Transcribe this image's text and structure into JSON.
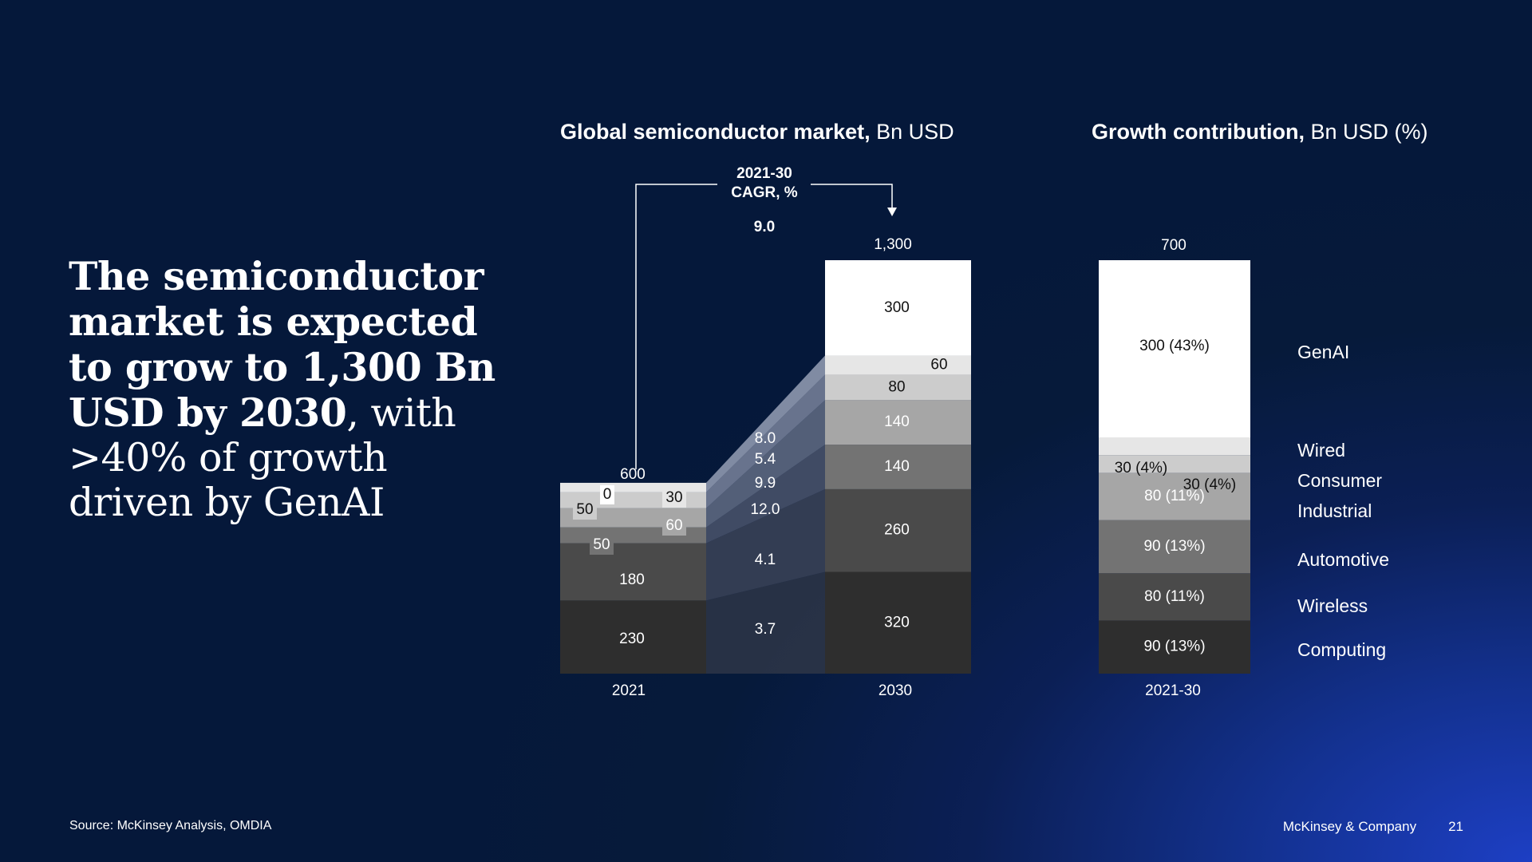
{
  "headline": {
    "bold": "The semiconductor market is expected to grow to 1,300 Bn USD by 2030",
    "regular": ", with >40% of growth driven by GenAI"
  },
  "market_title": {
    "bold": "Global semiconductor market,",
    "regular": " Bn USD"
  },
  "contrib_title": {
    "bold": "Growth contribution,",
    "regular": " Bn USD (%)"
  },
  "footer": {
    "source": "Source: McKinsey Analysis, OMDIA",
    "company": "McKinsey & Company",
    "page": "21"
  },
  "chart_data": [
    {
      "type": "bar",
      "stacked": true,
      "title": "Global semiconductor market, Bn USD",
      "categories": [
        "2021",
        "2030"
      ],
      "totals": [
        "600",
        "1,300"
      ],
      "cagr_header": [
        "2021-30",
        "CAGR, %"
      ],
      "cagr_total": "9.0",
      "series": [
        {
          "name": "Computing",
          "values": [
            230,
            320
          ],
          "labels": [
            "230",
            "320"
          ],
          "cagr": "3.7"
        },
        {
          "name": "Wireless",
          "values": [
            180,
            260
          ],
          "labels": [
            "180",
            "260"
          ],
          "cagr": "4.1"
        },
        {
          "name": "Automotive",
          "values": [
            50,
            140
          ],
          "labels": [
            "50",
            "140"
          ],
          "cagr": "12.0"
        },
        {
          "name": "Industrial",
          "values": [
            60,
            140
          ],
          "labels": [
            "60",
            "140"
          ],
          "cagr": "9.9"
        },
        {
          "name": "Consumer",
          "values": [
            50,
            80
          ],
          "labels": [
            "50",
            "80"
          ],
          "cagr": "5.4"
        },
        {
          "name": "Wired",
          "values": [
            30,
            60
          ],
          "labels": [
            "30",
            "60"
          ],
          "cagr": "8.0"
        },
        {
          "name": "GenAI",
          "values": [
            0,
            300
          ],
          "labels": [
            "0",
            "300"
          ],
          "cagr": ""
        }
      ],
      "ylim": [
        0,
        1300
      ]
    },
    {
      "type": "bar",
      "stacked": true,
      "title": "Growth contribution, Bn USD (%)",
      "categories": [
        "2021-30"
      ],
      "total": "700",
      "series": [
        {
          "name": "Computing",
          "value": 90,
          "label": "90 (13%)"
        },
        {
          "name": "Wireless",
          "value": 80,
          "label": "80 (11%)"
        },
        {
          "name": "Automotive",
          "value": 90,
          "label": "90 (13%)"
        },
        {
          "name": "Industrial",
          "value": 80,
          "label": "80 (11%)"
        },
        {
          "name": "Consumer",
          "value": 30,
          "label": "30 (4%)"
        },
        {
          "name": "Wired",
          "value": 30,
          "label": "30 (4%)"
        },
        {
          "name": "GenAI",
          "value": 300,
          "label": "300 (43%)"
        }
      ]
    }
  ]
}
